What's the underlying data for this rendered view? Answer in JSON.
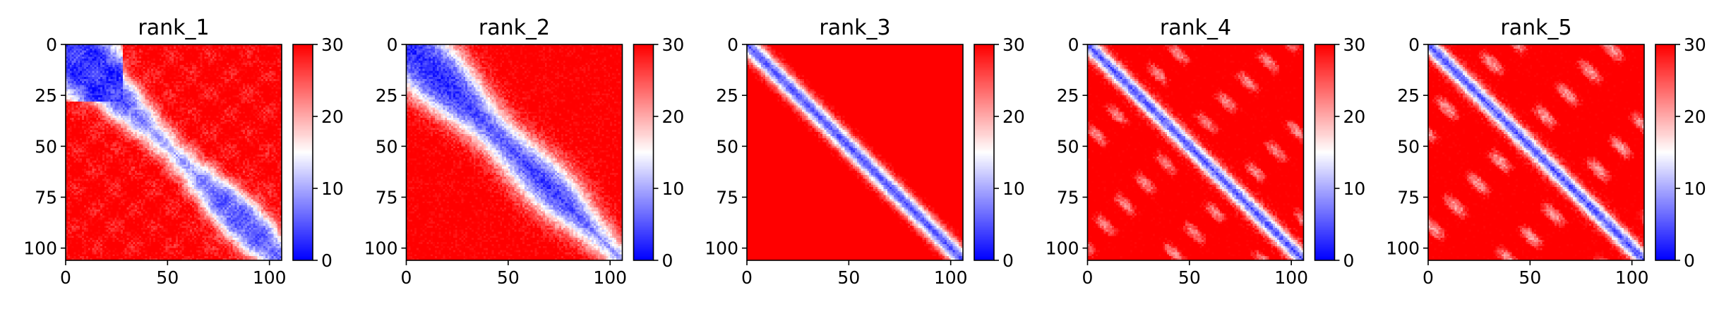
{
  "figure": {
    "panels": [
      "rank_1",
      "rank_2",
      "rank_3",
      "rank_4",
      "rank_5"
    ]
  },
  "chart_data": {
    "type": "heatmap",
    "panels": [
      {
        "title": "rank_1",
        "diagonal_band": "wide",
        "features": "blue band along the diagonal, extra-wide low region near the top-left corner (rows 0-25)"
      },
      {
        "title": "rank_2",
        "diagonal_band": "very wide",
        "features": "broad blue band along the diagonal, widest in the upper-left region"
      },
      {
        "title": "rank_3",
        "diagonal_band": "narrow",
        "features": "narrow blue diagonal, off-diagonal values saturated high"
      },
      {
        "title": "rank_4",
        "diagonal_band": "narrow",
        "features": "narrow blue diagonal with parallel pale off-diagonal stripes"
      },
      {
        "title": "rank_5",
        "diagonal_band": "narrow",
        "features": "narrow blue diagonal with parallel pale off-diagonal stripes"
      }
    ],
    "matrix_size": 106,
    "x_ticks": [
      0,
      50,
      100
    ],
    "y_ticks": [
      0,
      25,
      50,
      75,
      100
    ],
    "xlim": [
      0,
      106
    ],
    "ylim": [
      106,
      0
    ],
    "colorbar": {
      "colormap": "bwr",
      "range": [
        0,
        30
      ],
      "ticks": [
        0,
        10,
        20,
        30
      ],
      "colors": {
        "low": "#0000ff",
        "mid": "#ffffff",
        "high": "#ff0000"
      }
    }
  }
}
